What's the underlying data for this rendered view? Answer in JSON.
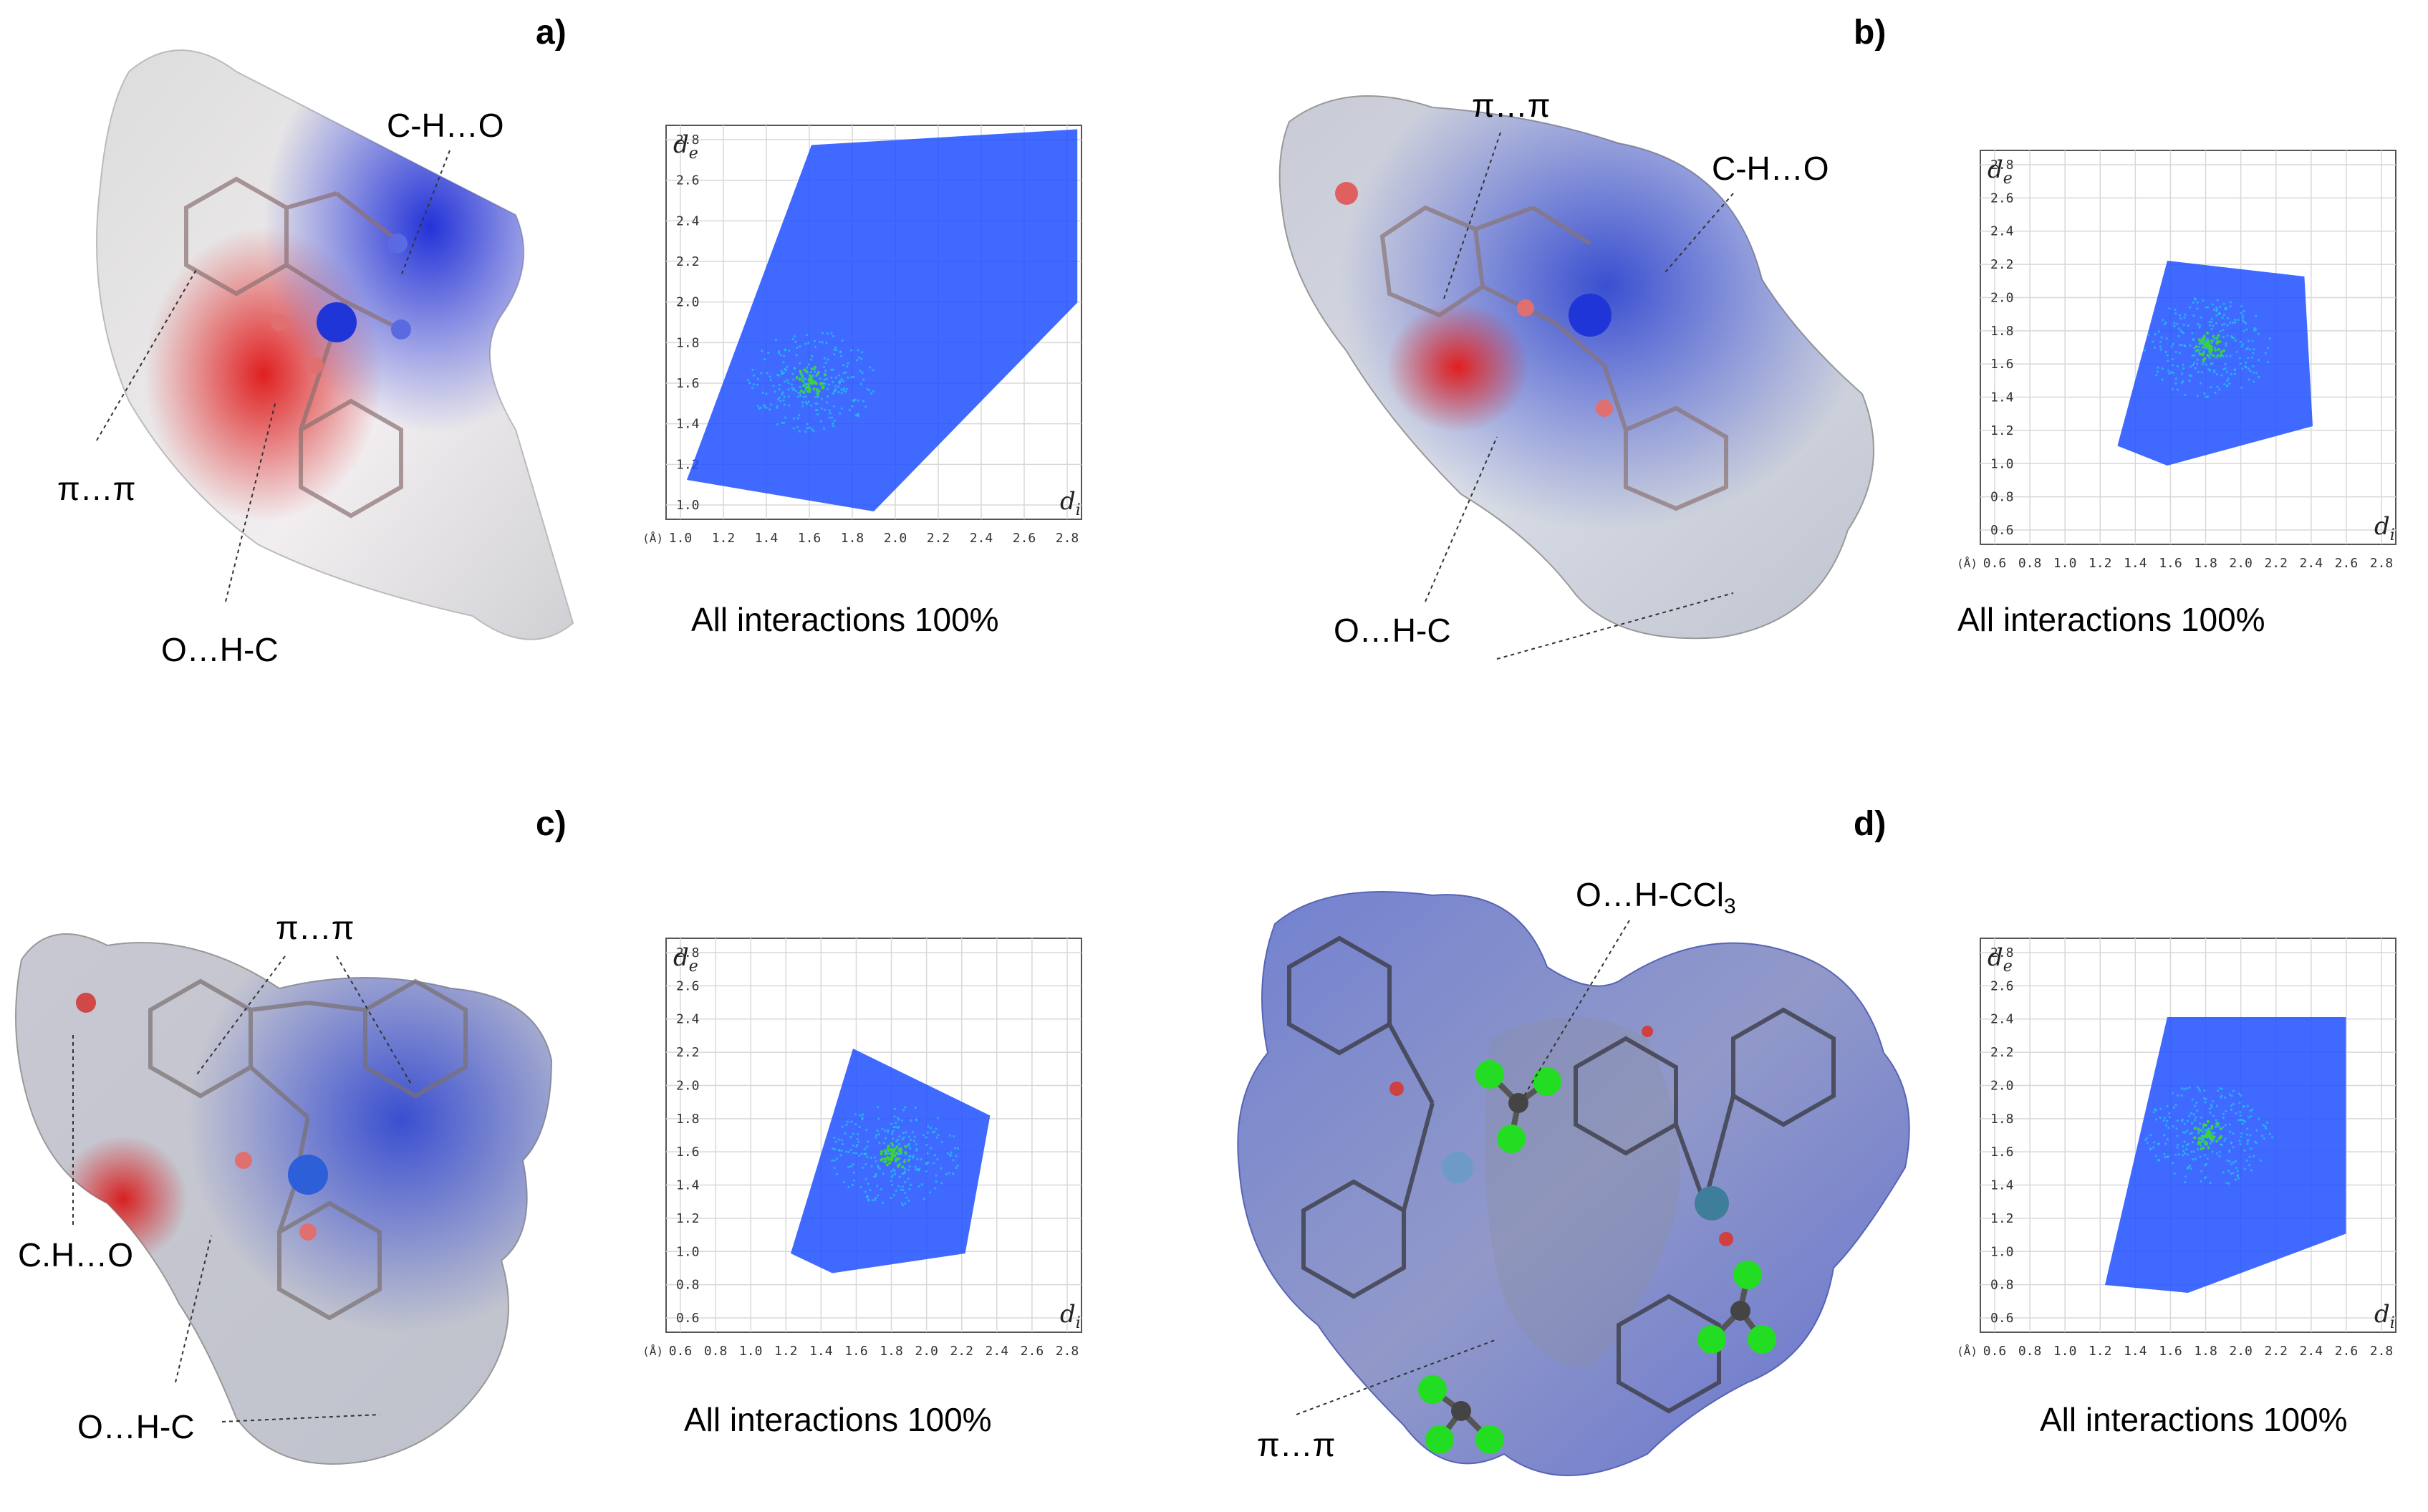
{
  "panels": [
    {
      "letter": "a)",
      "labels": {
        "l1": "C-H…O",
        "l2": "π…π",
        "l3": "O…H-C"
      },
      "plot": {
        "y_axis_label": "d",
        "y_axis_sub": "e",
        "x_axis_label": "d",
        "x_axis_sub": "i",
        "unit": "(Å)",
        "xticks": [
          "1.0",
          "1.2",
          "1.4",
          "1.6",
          "1.8",
          "2.0",
          "2.2",
          "2.4",
          "2.6",
          "2.8"
        ],
        "yticks": [
          "1.0",
          "1.2",
          "1.4",
          "1.6",
          "1.8",
          "2.0",
          "2.2",
          "2.4",
          "2.6",
          "2.8"
        ]
      },
      "caption": "All interactions 100%"
    },
    {
      "letter": "b)",
      "labels": {
        "l1": "π…π",
        "l2": "C-H…O",
        "l3": "O…H-C"
      },
      "plot": {
        "y_axis_label": "d",
        "y_axis_sub": "e",
        "x_axis_label": "d",
        "x_axis_sub": "i",
        "unit": "(Å)",
        "xticks": [
          "0.6",
          "0.8",
          "1.0",
          "1.2",
          "1.4",
          "1.6",
          "1.8",
          "2.0",
          "2.2",
          "2.4",
          "2.6",
          "2.8"
        ],
        "yticks": [
          "0.6",
          "0.8",
          "1.0",
          "1.2",
          "1.4",
          "1.6",
          "1.8",
          "2.0",
          "2.2",
          "2.4",
          "2.6",
          "2.8"
        ]
      },
      "caption": "All interactions 100%"
    },
    {
      "letter": "c)",
      "labels": {
        "l1": "π…π",
        "l2": "C.H…O",
        "l3": "O…H-C"
      },
      "plot": {
        "y_axis_label": "d",
        "y_axis_sub": "e",
        "x_axis_label": "d",
        "x_axis_sub": "i",
        "unit": "(Å)",
        "xticks": [
          "0.6",
          "0.8",
          "1.0",
          "1.2",
          "1.4",
          "1.6",
          "1.8",
          "2.0",
          "2.2",
          "2.4",
          "2.6",
          "2.8"
        ],
        "yticks": [
          "0.6",
          "0.8",
          "1.0",
          "1.2",
          "1.4",
          "1.6",
          "1.8",
          "2.0",
          "2.2",
          "2.4",
          "2.6",
          "2.8"
        ]
      },
      "caption": "All interactions 100%"
    },
    {
      "letter": "d)",
      "labels": {
        "l1": "O…H-CCl",
        "l1_sub": "3",
        "l2": "π…π"
      },
      "plot": {
        "y_axis_label": "d",
        "y_axis_sub": "e",
        "x_axis_label": "d",
        "x_axis_sub": "i",
        "unit": "(Å)",
        "xticks": [
          "0.6",
          "0.8",
          "1.0",
          "1.2",
          "1.4",
          "1.6",
          "1.8",
          "2.0",
          "2.2",
          "2.4",
          "2.6",
          "2.8"
        ],
        "yticks": [
          "0.6",
          "0.8",
          "1.0",
          "1.2",
          "1.4",
          "1.6",
          "1.8",
          "2.0",
          "2.2",
          "2.4",
          "2.6",
          "2.8"
        ]
      },
      "caption": "All interactions 100%"
    }
  ],
  "colors": {
    "surface_blue": "#3b4fc4",
    "surface_red": "#d62828",
    "surface_white": "#eeeeee",
    "point_blue": "#1f4fff",
    "point_cyan": "#20c8e8",
    "point_green": "#3ed13e",
    "chlorine_green": "#22dd22",
    "grid": "#d8d8d8"
  }
}
